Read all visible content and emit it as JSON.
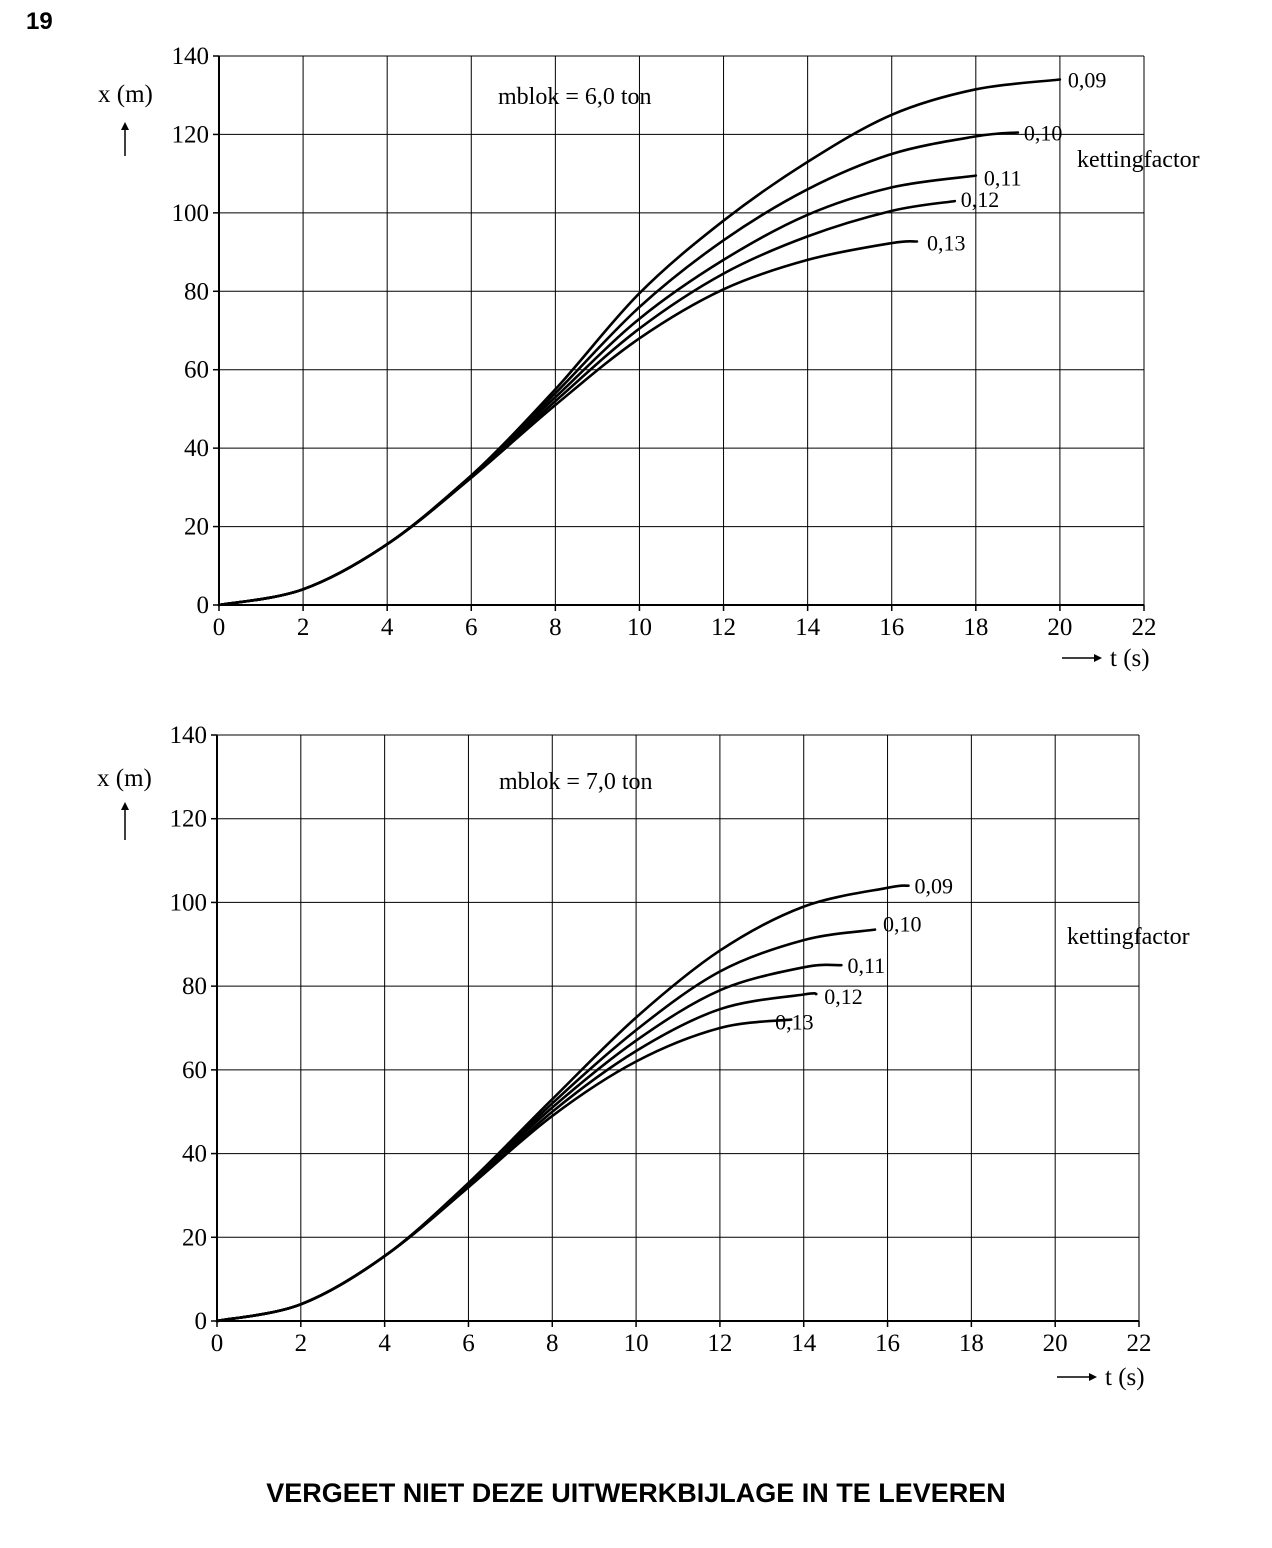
{
  "page": {
    "number": "19",
    "footer": "VERGEET NIET DEZE UITWERKBIJLAGE IN TE LEVEREN"
  },
  "chart_data": [
    {
      "type": "line",
      "annotation": "mblok = 6,0 ton",
      "legend_title": "kettingfactor",
      "xlabel": "t (s)",
      "ylabel": "x (m)",
      "xlim": [
        0,
        22
      ],
      "ylim": [
        0,
        140
      ],
      "xticks": [
        0,
        2,
        4,
        6,
        8,
        10,
        12,
        14,
        16,
        18,
        20,
        22
      ],
      "yticks": [
        0,
        20,
        40,
        60,
        80,
        100,
        120,
        140
      ],
      "grid": true,
      "series": [
        {
          "name": "0,09",
          "x": [
            0,
            2,
            4,
            6,
            8,
            10,
            12,
            14,
            16,
            18,
            20
          ],
          "y": [
            0,
            4,
            15.5,
            33,
            55,
            79.5,
            98,
            113,
            125,
            131.5,
            134
          ]
        },
        {
          "name": "0,10",
          "x": [
            0,
            2,
            4,
            6,
            8,
            10,
            12,
            14,
            16,
            18,
            19
          ],
          "y": [
            0,
            4,
            15.5,
            33,
            54,
            76,
            93,
            106,
            115,
            119.5,
            120.5
          ]
        },
        {
          "name": "0,11",
          "x": [
            0,
            2,
            4,
            6,
            8,
            10,
            12,
            14,
            16,
            18
          ],
          "y": [
            0,
            4,
            15.5,
            33,
            53,
            73,
            88,
            99.5,
            106.5,
            109.5
          ]
        },
        {
          "name": "0,12",
          "x": [
            0,
            2,
            4,
            6,
            8,
            10,
            12,
            14,
            16,
            17.5
          ],
          "y": [
            0,
            4,
            15.5,
            32.5,
            52,
            70.5,
            84.5,
            94,
            100.5,
            103
          ]
        },
        {
          "name": "0,13",
          "x": [
            0,
            2,
            4,
            6,
            8,
            10,
            12,
            14,
            16,
            16.6
          ],
          "y": [
            0,
            4,
            15.5,
            32.5,
            51,
            68,
            80.5,
            88,
            92.3,
            92.7
          ]
        }
      ]
    },
    {
      "type": "line",
      "annotation": "mblok = 7,0 ton",
      "legend_title": "kettingfactor",
      "xlabel": "t (s)",
      "ylabel": "x (m)",
      "xlim": [
        0,
        22
      ],
      "ylim": [
        0,
        140
      ],
      "xticks": [
        0,
        2,
        4,
        6,
        8,
        10,
        12,
        14,
        16,
        18,
        20,
        22
      ],
      "yticks": [
        0,
        20,
        40,
        60,
        80,
        100,
        120,
        140
      ],
      "grid": true,
      "series": [
        {
          "name": "0,09",
          "x": [
            0,
            2,
            4,
            6,
            8,
            10,
            12,
            14,
            16,
            16.5
          ],
          "y": [
            0,
            4,
            15.5,
            33,
            53,
            72.5,
            88.5,
            99,
            103.5,
            104
          ]
        },
        {
          "name": "0,10",
          "x": [
            0,
            2,
            4,
            6,
            8,
            10,
            12,
            14,
            15.7
          ],
          "y": [
            0,
            4,
            15.5,
            32.5,
            52,
            69.5,
            83.5,
            91,
            93.5
          ]
        },
        {
          "name": "0,11",
          "x": [
            0,
            2,
            4,
            6,
            8,
            10,
            12,
            14,
            14.9
          ],
          "y": [
            0,
            4,
            15.5,
            32.5,
            51,
            67,
            79,
            84.5,
            85
          ]
        },
        {
          "name": "0,12",
          "x": [
            0,
            2,
            4,
            6,
            8,
            10,
            12,
            14,
            14.3
          ],
          "y": [
            0,
            4,
            15.5,
            32,
            50,
            64.5,
            74.5,
            78,
            78.1
          ]
        },
        {
          "name": "0,13",
          "x": [
            0,
            2,
            4,
            6,
            8,
            10,
            12,
            13.7
          ],
          "y": [
            0,
            4,
            15.5,
            32,
            49,
            62,
            70,
            72
          ]
        }
      ]
    }
  ]
}
